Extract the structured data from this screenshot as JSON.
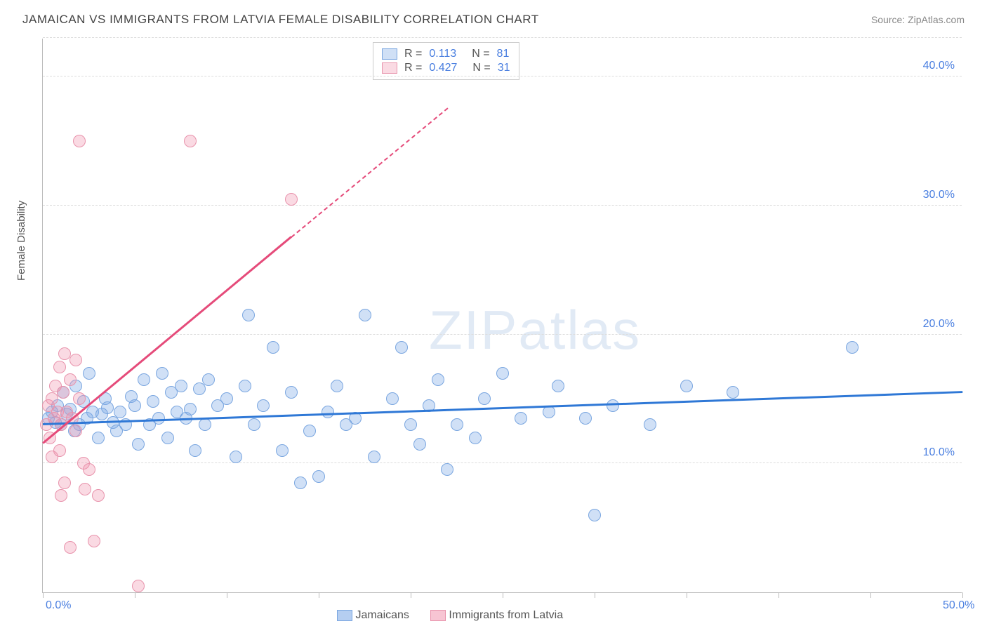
{
  "title": "JAMAICAN VS IMMIGRANTS FROM LATVIA FEMALE DISABILITY CORRELATION CHART",
  "source": "Source: ZipAtlas.com",
  "ylabel": "Female Disability",
  "watermark_a": "ZIP",
  "watermark_b": "atlas",
  "chart": {
    "type": "scatter",
    "xlim": [
      0,
      50
    ],
    "ylim": [
      0,
      43
    ],
    "x_ticks": [
      0,
      5,
      10,
      15,
      20,
      25,
      30,
      35,
      40,
      45,
      50
    ],
    "x_tick_labels_shown": {
      "0": "0.0%",
      "50": "50.0%"
    },
    "y_gridlines": [
      10,
      20,
      30,
      40,
      43
    ],
    "y_labels": {
      "10": "10.0%",
      "20": "20.0%",
      "30": "30.0%",
      "40": "40.0%"
    },
    "background_color": "#ffffff",
    "grid_color": "#dddddd",
    "axis_color": "#bbbbbb",
    "label_color": "#4a7fe0",
    "point_radius": 9,
    "series": [
      {
        "name": "Jamaicans",
        "fill": "rgba(120,165,230,0.35)",
        "stroke": "#7aa6e0",
        "trend_color": "#2f78d6",
        "r_value": "0.113",
        "n_value": "81",
        "trend": {
          "x1": 0,
          "y1": 13.0,
          "x2": 50,
          "y2": 15.5
        },
        "points": [
          [
            0.3,
            13.5
          ],
          [
            0.5,
            14.0
          ],
          [
            0.7,
            13.2
          ],
          [
            0.8,
            14.5
          ],
          [
            1.0,
            13.0
          ],
          [
            1.1,
            15.5
          ],
          [
            1.3,
            13.8
          ],
          [
            1.5,
            14.2
          ],
          [
            1.7,
            12.5
          ],
          [
            1.8,
            16.0
          ],
          [
            2.0,
            13.0
          ],
          [
            2.2,
            14.8
          ],
          [
            2.4,
            13.5
          ],
          [
            2.5,
            17.0
          ],
          [
            2.7,
            14.0
          ],
          [
            3.0,
            12.0
          ],
          [
            3.2,
            13.8
          ],
          [
            3.4,
            15.0
          ],
          [
            3.5,
            14.3
          ],
          [
            3.8,
            13.2
          ],
          [
            4.0,
            12.5
          ],
          [
            4.2,
            14.0
          ],
          [
            4.5,
            13.0
          ],
          [
            4.8,
            15.2
          ],
          [
            5.0,
            14.5
          ],
          [
            5.2,
            11.5
          ],
          [
            5.5,
            16.5
          ],
          [
            5.8,
            13.0
          ],
          [
            6.0,
            14.8
          ],
          [
            6.3,
            13.5
          ],
          [
            6.5,
            17.0
          ],
          [
            6.8,
            12.0
          ],
          [
            7.0,
            15.5
          ],
          [
            7.3,
            14.0
          ],
          [
            7.5,
            16.0
          ],
          [
            7.8,
            13.5
          ],
          [
            8.0,
            14.2
          ],
          [
            8.3,
            11.0
          ],
          [
            8.5,
            15.8
          ],
          [
            8.8,
            13.0
          ],
          [
            9.0,
            16.5
          ],
          [
            9.5,
            14.5
          ],
          [
            10.0,
            15.0
          ],
          [
            10.5,
            10.5
          ],
          [
            11.0,
            16.0
          ],
          [
            11.2,
            21.5
          ],
          [
            11.5,
            13.0
          ],
          [
            12.0,
            14.5
          ],
          [
            12.5,
            19.0
          ],
          [
            13.0,
            11.0
          ],
          [
            13.5,
            15.5
          ],
          [
            14.0,
            8.5
          ],
          [
            14.5,
            12.5
          ],
          [
            15.0,
            9.0
          ],
          [
            15.5,
            14.0
          ],
          [
            16.0,
            16.0
          ],
          [
            17.0,
            13.5
          ],
          [
            17.5,
            21.5
          ],
          [
            18.0,
            10.5
          ],
          [
            19.0,
            15.0
          ],
          [
            19.5,
            19.0
          ],
          [
            20.0,
            13.0
          ],
          [
            20.5,
            11.5
          ],
          [
            21.0,
            14.5
          ],
          [
            21.5,
            16.5
          ],
          [
            22.5,
            13.0
          ],
          [
            23.5,
            12.0
          ],
          [
            24.0,
            15.0
          ],
          [
            25.0,
            17.0
          ],
          [
            26.0,
            13.5
          ],
          [
            27.5,
            14.0
          ],
          [
            28.0,
            16.0
          ],
          [
            29.5,
            13.5
          ],
          [
            30.0,
            6.0
          ],
          [
            31.0,
            14.5
          ],
          [
            33.0,
            13.0
          ],
          [
            37.5,
            15.5
          ],
          [
            44.0,
            19.0
          ],
          [
            35.0,
            16.0
          ],
          [
            22.0,
            9.5
          ],
          [
            16.5,
            13.0
          ]
        ]
      },
      {
        "name": "Immigrants from Latvia",
        "fill": "rgba(240,150,175,0.35)",
        "stroke": "#e893ac",
        "trend_color": "#e54b7a",
        "r_value": "0.427",
        "n_value": "31",
        "trend_solid": {
          "x1": 0,
          "y1": 11.5,
          "x2": 13.5,
          "y2": 27.5
        },
        "trend_dashed": {
          "x1": 13.5,
          "y1": 27.5,
          "x2": 22,
          "y2": 37.5
        },
        "points": [
          [
            0.2,
            13.0
          ],
          [
            0.3,
            14.5
          ],
          [
            0.4,
            12.0
          ],
          [
            0.5,
            15.0
          ],
          [
            0.6,
            13.5
          ],
          [
            0.7,
            16.0
          ],
          [
            0.8,
            14.0
          ],
          [
            0.9,
            17.5
          ],
          [
            1.0,
            13.0
          ],
          [
            1.1,
            15.5
          ],
          [
            1.2,
            18.5
          ],
          [
            1.3,
            14.0
          ],
          [
            1.5,
            16.5
          ],
          [
            1.6,
            13.5
          ],
          [
            1.8,
            18.0
          ],
          [
            2.0,
            15.0
          ],
          [
            2.2,
            10.0
          ],
          [
            2.3,
            8.0
          ],
          [
            2.5,
            9.5
          ],
          [
            1.0,
            7.5
          ],
          [
            1.2,
            8.5
          ],
          [
            0.5,
            10.5
          ],
          [
            1.5,
            3.5
          ],
          [
            2.8,
            4.0
          ],
          [
            3.0,
            7.5
          ],
          [
            5.2,
            0.5
          ],
          [
            2.0,
            35.0
          ],
          [
            8.0,
            35.0
          ],
          [
            13.5,
            30.5
          ],
          [
            1.8,
            12.5
          ],
          [
            0.9,
            11.0
          ]
        ]
      }
    ]
  },
  "legend_bottom": [
    {
      "label": "Jamaicans",
      "fill": "rgba(120,165,230,0.55)",
      "stroke": "#7aa6e0"
    },
    {
      "label": "Immigrants from Latvia",
      "fill": "rgba(240,150,175,0.55)",
      "stroke": "#e893ac"
    }
  ]
}
